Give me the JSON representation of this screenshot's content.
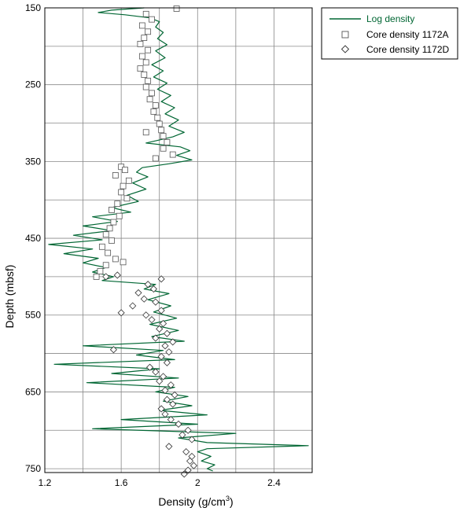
{
  "chart_data": {
    "type": "scatter",
    "xlabel": "Density (g/cm",
    "xlabel_sup": "3",
    "xlabel_end": ")",
    "ylabel": "Depth (mbsf)",
    "xlim": [
      1.2,
      2.6
    ],
    "ylim": [
      755,
      150
    ],
    "x_ticks": [
      1.2,
      1.6,
      2,
      2.4
    ],
    "x_tick_labels": [
      "1.2",
      "1.6",
      "2",
      "2.4"
    ],
    "y_ticks": [
      150,
      250,
      350,
      450,
      550,
      650,
      750
    ],
    "y_tick_labels": [
      "150",
      "250",
      "350",
      "450",
      "550",
      "650",
      "750"
    ],
    "grid": true,
    "legend_position": "top-right",
    "colors": {
      "log": "#006633",
      "marker": "#555555"
    },
    "series": [
      {
        "name": "Log density",
        "kind": "line",
        "points": [
          [
            1.72,
            150
          ],
          [
            1.55,
            153
          ],
          [
            1.48,
            156
          ],
          [
            1.62,
            159
          ],
          [
            1.75,
            163
          ],
          [
            1.8,
            168
          ],
          [
            1.78,
            175
          ],
          [
            1.82,
            182
          ],
          [
            1.79,
            190
          ],
          [
            1.84,
            198
          ],
          [
            1.78,
            206
          ],
          [
            1.83,
            215
          ],
          [
            1.76,
            224
          ],
          [
            1.82,
            232
          ],
          [
            1.77,
            240
          ],
          [
            1.84,
            248
          ],
          [
            1.79,
            256
          ],
          [
            1.86,
            264
          ],
          [
            1.81,
            272
          ],
          [
            1.88,
            280
          ],
          [
            1.83,
            288
          ],
          [
            1.9,
            296
          ],
          [
            1.85,
            304
          ],
          [
            1.93,
            312
          ],
          [
            1.87,
            318
          ],
          [
            1.73,
            326
          ],
          [
            1.91,
            331
          ],
          [
            1.96,
            336
          ],
          [
            1.89,
            342
          ],
          [
            1.97,
            348
          ],
          [
            1.85,
            353
          ],
          [
            1.71,
            358
          ],
          [
            1.68,
            364
          ],
          [
            1.74,
            370
          ],
          [
            1.66,
            378
          ],
          [
            1.73,
            386
          ],
          [
            1.63,
            394
          ],
          [
            1.69,
            402
          ],
          [
            1.55,
            410
          ],
          [
            1.65,
            416
          ],
          [
            1.45,
            422
          ],
          [
            1.58,
            428
          ],
          [
            1.4,
            434
          ],
          [
            1.55,
            440
          ],
          [
            1.35,
            446
          ],
          [
            1.5,
            452
          ],
          [
            1.22,
            458
          ],
          [
            1.45,
            464
          ],
          [
            1.3,
            470
          ],
          [
            1.48,
            476
          ],
          [
            1.4,
            482
          ],
          [
            1.52,
            488
          ],
          [
            1.45,
            494
          ],
          [
            1.56,
            500
          ],
          [
            1.5,
            505
          ],
          [
            1.78,
            510
          ],
          [
            1.72,
            516
          ],
          [
            1.85,
            522
          ],
          [
            1.74,
            530
          ],
          [
            1.86,
            538
          ],
          [
            1.77,
            546
          ],
          [
            1.89,
            554
          ],
          [
            1.75,
            562
          ],
          [
            1.9,
            570
          ],
          [
            1.76,
            578
          ],
          [
            1.93,
            584
          ],
          [
            1.4,
            590
          ],
          [
            1.82,
            596
          ],
          [
            1.68,
            602
          ],
          [
            1.88,
            608
          ],
          [
            1.25,
            614
          ],
          [
            1.8,
            620
          ],
          [
            1.55,
            626
          ],
          [
            1.9,
            632
          ],
          [
            1.42,
            638
          ],
          [
            1.88,
            644
          ],
          [
            1.78,
            650
          ],
          [
            1.95,
            656
          ],
          [
            1.82,
            662
          ],
          [
            1.97,
            668
          ],
          [
            1.8,
            674
          ],
          [
            2.05,
            680
          ],
          [
            1.6,
            686
          ],
          [
            2.0,
            692
          ],
          [
            1.45,
            698
          ],
          [
            2.2,
            704
          ],
          [
            1.9,
            710
          ],
          [
            2.05,
            716
          ],
          [
            2.58,
            720
          ],
          [
            2.05,
            724
          ],
          [
            2.0,
            728
          ],
          [
            2.07,
            734
          ],
          [
            2.02,
            740
          ],
          [
            2.09,
            745
          ],
          [
            2.05,
            750
          ],
          [
            2.08,
            753
          ]
        ]
      },
      {
        "name": "Core density 1172A",
        "kind": "square",
        "points": [
          [
            1.89,
            151
          ],
          [
            1.73,
            158
          ],
          [
            1.76,
            165
          ],
          [
            1.71,
            173
          ],
          [
            1.74,
            181
          ],
          [
            1.72,
            189
          ],
          [
            1.7,
            197
          ],
          [
            1.74,
            205
          ],
          [
            1.71,
            213
          ],
          [
            1.73,
            221
          ],
          [
            1.7,
            229
          ],
          [
            1.72,
            237
          ],
          [
            1.74,
            245
          ],
          [
            1.73,
            253
          ],
          [
            1.76,
            261
          ],
          [
            1.75,
            269
          ],
          [
            1.78,
            277
          ],
          [
            1.77,
            285
          ],
          [
            1.79,
            293
          ],
          [
            1.73,
            312
          ],
          [
            1.8,
            301
          ],
          [
            1.81,
            309
          ],
          [
            1.82,
            317
          ],
          [
            1.84,
            325
          ],
          [
            1.82,
            333
          ],
          [
            1.87,
            341
          ],
          [
            1.78,
            346
          ],
          [
            1.6,
            357
          ],
          [
            1.57,
            368
          ],
          [
            1.62,
            361
          ],
          [
            1.64,
            375
          ],
          [
            1.61,
            382
          ],
          [
            1.6,
            390
          ],
          [
            1.63,
            398
          ],
          [
            1.58,
            405
          ],
          [
            1.55,
            413
          ],
          [
            1.59,
            421
          ],
          [
            1.56,
            429
          ],
          [
            1.54,
            437
          ],
          [
            1.52,
            445
          ],
          [
            1.55,
            453
          ],
          [
            1.5,
            461
          ],
          [
            1.53,
            469
          ],
          [
            1.57,
            477
          ],
          [
            1.52,
            485
          ],
          [
            1.61,
            481
          ],
          [
            1.49,
            493
          ],
          [
            1.47,
            500
          ]
        ]
      },
      {
        "name": "Core density 1172D",
        "kind": "diamond",
        "points": [
          [
            1.81,
            503
          ],
          [
            1.58,
            498
          ],
          [
            1.52,
            500
          ],
          [
            1.74,
            510
          ],
          [
            1.77,
            516
          ],
          [
            1.69,
            521
          ],
          [
            1.72,
            529
          ],
          [
            1.66,
            538
          ],
          [
            1.78,
            533
          ],
          [
            1.81,
            544
          ],
          [
            1.6,
            547
          ],
          [
            1.73,
            550
          ],
          [
            1.76,
            556
          ],
          [
            1.82,
            561
          ],
          [
            1.8,
            568
          ],
          [
            1.84,
            574
          ],
          [
            1.78,
            580
          ],
          [
            1.87,
            585
          ],
          [
            1.83,
            590
          ],
          [
            1.56,
            595
          ],
          [
            1.85,
            598
          ],
          [
            1.81,
            604
          ],
          [
            1.84,
            612
          ],
          [
            1.75,
            618
          ],
          [
            1.78,
            624
          ],
          [
            1.82,
            630
          ],
          [
            1.8,
            636
          ],
          [
            1.86,
            641
          ],
          [
            1.83,
            648
          ],
          [
            1.88,
            654
          ],
          [
            1.84,
            660
          ],
          [
            1.87,
            666
          ],
          [
            1.81,
            672
          ],
          [
            1.83,
            679
          ],
          [
            1.86,
            686
          ],
          [
            1.9,
            692
          ],
          [
            1.95,
            700
          ],
          [
            1.92,
            706
          ],
          [
            1.97,
            712
          ],
          [
            1.85,
            721
          ],
          [
            1.94,
            728
          ],
          [
            1.97,
            734
          ],
          [
            1.96,
            740
          ],
          [
            1.98,
            746
          ],
          [
            1.95,
            752
          ],
          [
            1.93,
            757
          ]
        ]
      }
    ]
  }
}
